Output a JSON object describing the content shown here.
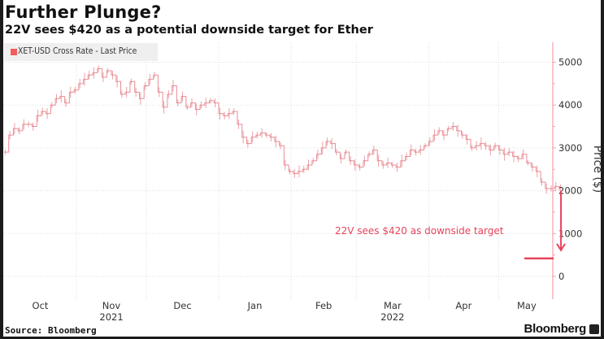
{
  "header": {
    "title": "Further Plunge?",
    "subtitle": "22V sees $420 as a potential downside target for Ether"
  },
  "footer": {
    "source": "Source: Bloomberg",
    "brand": "Bloomberg",
    "brand_icon": "bloomberg-terminal-icon"
  },
  "colors": {
    "series": "#e57a82",
    "annotation": "#e8445c",
    "axis": "#f2a0aa",
    "grid": "#dddddd"
  },
  "chart_data": {
    "type": "line",
    "title": "Further Plunge?",
    "subtitle": "22V sees $420 as a potential downside target for Ether",
    "legend": [
      {
        "name": "XET-USD Cross Rate - Last Price",
        "color": "#f25c5c"
      }
    ],
    "legend_position": "top-left",
    "xlabel": "",
    "ylabel": "Price ($)",
    "ylim": [
      -500,
      5500
    ],
    "yticks": [
      0,
      1000,
      2000,
      3000,
      4000,
      5000
    ],
    "y_axis_side": "right",
    "grid": true,
    "xticks": [
      {
        "label": "Oct",
        "year": ""
      },
      {
        "label": "Nov",
        "year": "2021"
      },
      {
        "label": "Dec",
        "year": ""
      },
      {
        "label": "Jan",
        "year": ""
      },
      {
        "label": "Feb",
        "year": ""
      },
      {
        "label": "Mar",
        "year": "2022"
      },
      {
        "label": "Apr",
        "year": ""
      },
      {
        "label": "May",
        "year": ""
      }
    ],
    "x_unit": "days since 2021-10-01",
    "series": [
      {
        "name": "XET-USD Cross Rate - Last Price",
        "points": [
          [
            0,
            2900
          ],
          [
            2,
            3300
          ],
          [
            4,
            3450
          ],
          [
            6,
            3400
          ],
          [
            8,
            3550
          ],
          [
            10,
            3550
          ],
          [
            12,
            3500
          ],
          [
            14,
            3750
          ],
          [
            16,
            3850
          ],
          [
            18,
            3800
          ],
          [
            20,
            4000
          ],
          [
            22,
            4150
          ],
          [
            24,
            4200
          ],
          [
            26,
            4050
          ],
          [
            28,
            4300
          ],
          [
            30,
            4350
          ],
          [
            32,
            4500
          ],
          [
            34,
            4600
          ],
          [
            36,
            4700
          ],
          [
            38,
            4750
          ],
          [
            40,
            4850
          ],
          [
            42,
            4650
          ],
          [
            44,
            4800
          ],
          [
            46,
            4700
          ],
          [
            48,
            4550
          ],
          [
            50,
            4250
          ],
          [
            52,
            4300
          ],
          [
            54,
            4550
          ],
          [
            56,
            4300
          ],
          [
            58,
            4150
          ],
          [
            60,
            4450
          ],
          [
            62,
            4600
          ],
          [
            64,
            4700
          ],
          [
            66,
            4300
          ],
          [
            68,
            3950
          ],
          [
            70,
            4250
          ],
          [
            72,
            4450
          ],
          [
            74,
            4050
          ],
          [
            76,
            4200
          ],
          [
            78,
            3950
          ],
          [
            80,
            4050
          ],
          [
            82,
            3900
          ],
          [
            84,
            4000
          ],
          [
            86,
            4050
          ],
          [
            88,
            4100
          ],
          [
            90,
            4050
          ],
          [
            92,
            3800
          ],
          [
            94,
            3750
          ],
          [
            96,
            3800
          ],
          [
            98,
            3850
          ],
          [
            100,
            3550
          ],
          [
            102,
            3250
          ],
          [
            104,
            3100
          ],
          [
            106,
            3250
          ],
          [
            108,
            3300
          ],
          [
            110,
            3350
          ],
          [
            112,
            3300
          ],
          [
            114,
            3250
          ],
          [
            116,
            3150
          ],
          [
            118,
            3050
          ],
          [
            120,
            2600
          ],
          [
            122,
            2450
          ],
          [
            124,
            2400
          ],
          [
            126,
            2450
          ],
          [
            128,
            2500
          ],
          [
            130,
            2600
          ],
          [
            132,
            2700
          ],
          [
            134,
            2850
          ],
          [
            136,
            3000
          ],
          [
            138,
            3150
          ],
          [
            140,
            3100
          ],
          [
            142,
            2900
          ],
          [
            144,
            2750
          ],
          [
            146,
            2900
          ],
          [
            148,
            2700
          ],
          [
            150,
            2600
          ],
          [
            152,
            2550
          ],
          [
            154,
            2700
          ],
          [
            156,
            2850
          ],
          [
            158,
            2950
          ],
          [
            160,
            2700
          ],
          [
            162,
            2600
          ],
          [
            164,
            2650
          ],
          [
            166,
            2600
          ],
          [
            168,
            2550
          ],
          [
            170,
            2700
          ],
          [
            172,
            2800
          ],
          [
            174,
            2950
          ],
          [
            176,
            2900
          ],
          [
            178,
            2950
          ],
          [
            180,
            3050
          ],
          [
            182,
            3150
          ],
          [
            184,
            3300
          ],
          [
            186,
            3400
          ],
          [
            188,
            3300
          ],
          [
            190,
            3450
          ],
          [
            192,
            3500
          ],
          [
            194,
            3400
          ],
          [
            196,
            3300
          ],
          [
            198,
            3200
          ],
          [
            200,
            3000
          ],
          [
            202,
            3050
          ],
          [
            204,
            3100
          ],
          [
            206,
            3050
          ],
          [
            208,
            2950
          ],
          [
            210,
            3050
          ],
          [
            212,
            2950
          ],
          [
            214,
            2850
          ],
          [
            216,
            2900
          ],
          [
            218,
            2800
          ],
          [
            220,
            2750
          ],
          [
            222,
            2850
          ],
          [
            224,
            2650
          ],
          [
            226,
            2550
          ],
          [
            228,
            2450
          ],
          [
            230,
            2200
          ],
          [
            232,
            2050
          ],
          [
            234,
            2050
          ],
          [
            236,
            2100
          ],
          [
            238,
            2000
          ]
        ]
      }
    ],
    "annotations": [
      {
        "text": "22V sees $420 as downside target",
        "type": "arrow",
        "from": 2000,
        "to": 420
      },
      {
        "text": "",
        "type": "target-line",
        "value": 420
      }
    ]
  },
  "legend_text": "XET-USD Cross Rate - Last Price"
}
